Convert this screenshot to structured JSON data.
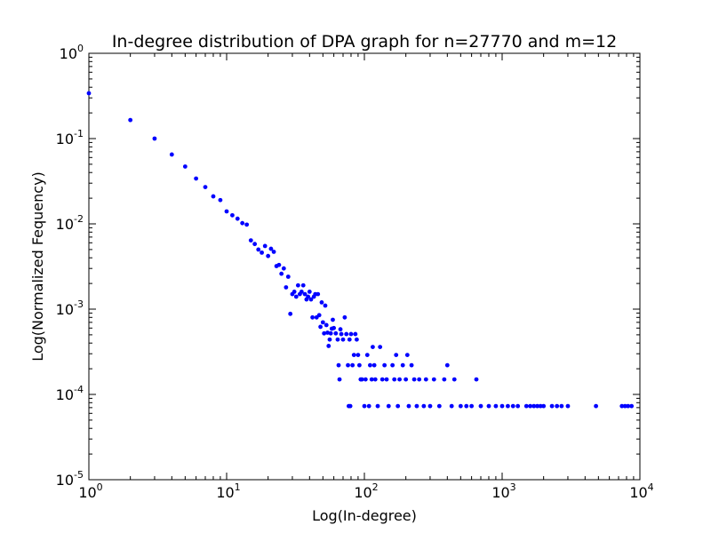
{
  "chart_data": {
    "type": "scatter",
    "title": "In-degree distribution of DPA graph for n=27770 and m=12",
    "xlabel": "Log(In-degree)",
    "ylabel": "Log(Normalized Fequency)",
    "x_scale": "log",
    "y_scale": "log",
    "xlim": [
      1,
      10000
    ],
    "ylim": [
      1e-05,
      1
    ],
    "grid": false,
    "marker_color": "#0000ff",
    "x_ticks": [
      {
        "base": "10",
        "exp": "0",
        "value": 1
      },
      {
        "base": "10",
        "exp": "1",
        "value": 10
      },
      {
        "base": "10",
        "exp": "2",
        "value": 100
      },
      {
        "base": "10",
        "exp": "3",
        "value": 1000
      },
      {
        "base": "10",
        "exp": "4",
        "value": 10000
      }
    ],
    "y_ticks": [
      {
        "base": "10",
        "exp": "0",
        "value": 1
      },
      {
        "base": "10",
        "exp": "-1",
        "value": 0.1
      },
      {
        "base": "10",
        "exp": "-2",
        "value": 0.01
      },
      {
        "base": "10",
        "exp": "-3",
        "value": 0.001
      },
      {
        "base": "10",
        "exp": "-4",
        "value": 0.0001
      },
      {
        "base": "10",
        "exp": "-5",
        "value": 1e-05
      }
    ],
    "points": [
      [
        1,
        0.34
      ],
      [
        2,
        0.165
      ],
      [
        3,
        0.1
      ],
      [
        4,
        0.065
      ],
      [
        5,
        0.047
      ],
      [
        6,
        0.034
      ],
      [
        7,
        0.027
      ],
      [
        8,
        0.021
      ],
      [
        9,
        0.019
      ],
      [
        10,
        0.014
      ],
      [
        11,
        0.0126
      ],
      [
        12,
        0.0115
      ],
      [
        13,
        0.0102
      ],
      [
        14,
        0.0098
      ],
      [
        15,
        0.0064
      ],
      [
        16,
        0.0058
      ],
      [
        17,
        0.005
      ],
      [
        18,
        0.0046
      ],
      [
        19,
        0.0055
      ],
      [
        20,
        0.0042
      ],
      [
        21,
        0.0051
      ],
      [
        22,
        0.0047
      ],
      [
        23,
        0.0032
      ],
      [
        24,
        0.0033
      ],
      [
        25,
        0.0026
      ],
      [
        26,
        0.003
      ],
      [
        27,
        0.0018
      ],
      [
        28,
        0.0024
      ],
      [
        29,
        0.00088
      ],
      [
        30,
        0.0015
      ],
      [
        31,
        0.0016
      ],
      [
        32,
        0.0014
      ],
      [
        33,
        0.0019
      ],
      [
        34,
        0.0015
      ],
      [
        35,
        0.0016
      ],
      [
        36,
        0.0019
      ],
      [
        37,
        0.0015
      ],
      [
        38,
        0.0013
      ],
      [
        39,
        0.0014
      ],
      [
        40,
        0.0016
      ],
      [
        41,
        0.0013
      ],
      [
        42,
        0.0008
      ],
      [
        43,
        0.0014
      ],
      [
        44,
        0.0015
      ],
      [
        45,
        0.0008
      ],
      [
        46,
        0.0015
      ],
      [
        47,
        0.00085
      ],
      [
        48,
        0.00062
      ],
      [
        49,
        0.0012
      ],
      [
        50,
        0.0007
      ],
      [
        51,
        0.00052
      ],
      [
        52,
        0.0011
      ],
      [
        53,
        0.00065
      ],
      [
        54,
        0.00053
      ],
      [
        55,
        0.00037
      ],
      [
        56,
        0.00044
      ],
      [
        57,
        0.00052
      ],
      [
        58,
        0.00059
      ],
      [
        59,
        0.00075
      ],
      [
        60,
        0.0006
      ],
      [
        62,
        0.00052
      ],
      [
        64,
        0.00044
      ],
      [
        65,
        0.00022
      ],
      [
        66,
        0.00015
      ],
      [
        67,
        0.00058
      ],
      [
        68,
        0.00051
      ],
      [
        70,
        0.00044
      ],
      [
        72,
        0.0008
      ],
      [
        74,
        0.00051
      ],
      [
        76,
        0.00022
      ],
      [
        77,
        7.3e-05
      ],
      [
        78,
        0.00044
      ],
      [
        79,
        7.3e-05
      ],
      [
        80,
        0.00051
      ],
      [
        82,
        0.00022
      ],
      [
        84,
        0.00029
      ],
      [
        86,
        0.00051
      ],
      [
        88,
        0.00044
      ],
      [
        90,
        0.00029
      ],
      [
        92,
        0.00022
      ],
      [
        94,
        0.00015
      ],
      [
        96,
        0.00015
      ],
      [
        100,
        7.3e-05
      ],
      [
        102,
        0.00015
      ],
      [
        105,
        0.00029
      ],
      [
        108,
        7.3e-05
      ],
      [
        110,
        0.00022
      ],
      [
        113,
        0.00015
      ],
      [
        115,
        0.00036
      ],
      [
        118,
        0.00022
      ],
      [
        120,
        0.00015
      ],
      [
        125,
        7.3e-05
      ],
      [
        130,
        0.00036
      ],
      [
        135,
        0.00015
      ],
      [
        140,
        0.00022
      ],
      [
        145,
        0.00015
      ],
      [
        150,
        7.3e-05
      ],
      [
        160,
        0.00022
      ],
      [
        165,
        0.00015
      ],
      [
        170,
        0.00029
      ],
      [
        175,
        7.3e-05
      ],
      [
        180,
        0.00015
      ],
      [
        190,
        0.00022
      ],
      [
        200,
        0.00015
      ],
      [
        205,
        0.00029
      ],
      [
        210,
        7.3e-05
      ],
      [
        220,
        0.00022
      ],
      [
        230,
        0.00015
      ],
      [
        240,
        7.3e-05
      ],
      [
        250,
        0.00015
      ],
      [
        270,
        7.3e-05
      ],
      [
        280,
        0.00015
      ],
      [
        300,
        7.3e-05
      ],
      [
        320,
        0.00015
      ],
      [
        350,
        7.3e-05
      ],
      [
        380,
        0.00015
      ],
      [
        400,
        0.00022
      ],
      [
        430,
        7.3e-05
      ],
      [
        450,
        0.00015
      ],
      [
        500,
        7.3e-05
      ],
      [
        550,
        7.3e-05
      ],
      [
        600,
        7.3e-05
      ],
      [
        650,
        0.00015
      ],
      [
        700,
        7.3e-05
      ],
      [
        800,
        7.3e-05
      ],
      [
        900,
        7.3e-05
      ],
      [
        1000,
        7.3e-05
      ],
      [
        1100,
        7.3e-05
      ],
      [
        1200,
        7.3e-05
      ],
      [
        1300,
        7.3e-05
      ],
      [
        1500,
        7.3e-05
      ],
      [
        1600,
        7.3e-05
      ],
      [
        1700,
        7.3e-05
      ],
      [
        1800,
        7.3e-05
      ],
      [
        1900,
        7.3e-05
      ],
      [
        2000,
        7.3e-05
      ],
      [
        2300,
        7.3e-05
      ],
      [
        2500,
        7.3e-05
      ],
      [
        2700,
        7.3e-05
      ],
      [
        3000,
        7.3e-05
      ],
      [
        4800,
        7.3e-05
      ],
      [
        7400,
        7.3e-05
      ],
      [
        7800,
        7.3e-05
      ],
      [
        8200,
        7.3e-05
      ],
      [
        8700,
        7.3e-05
      ]
    ]
  }
}
